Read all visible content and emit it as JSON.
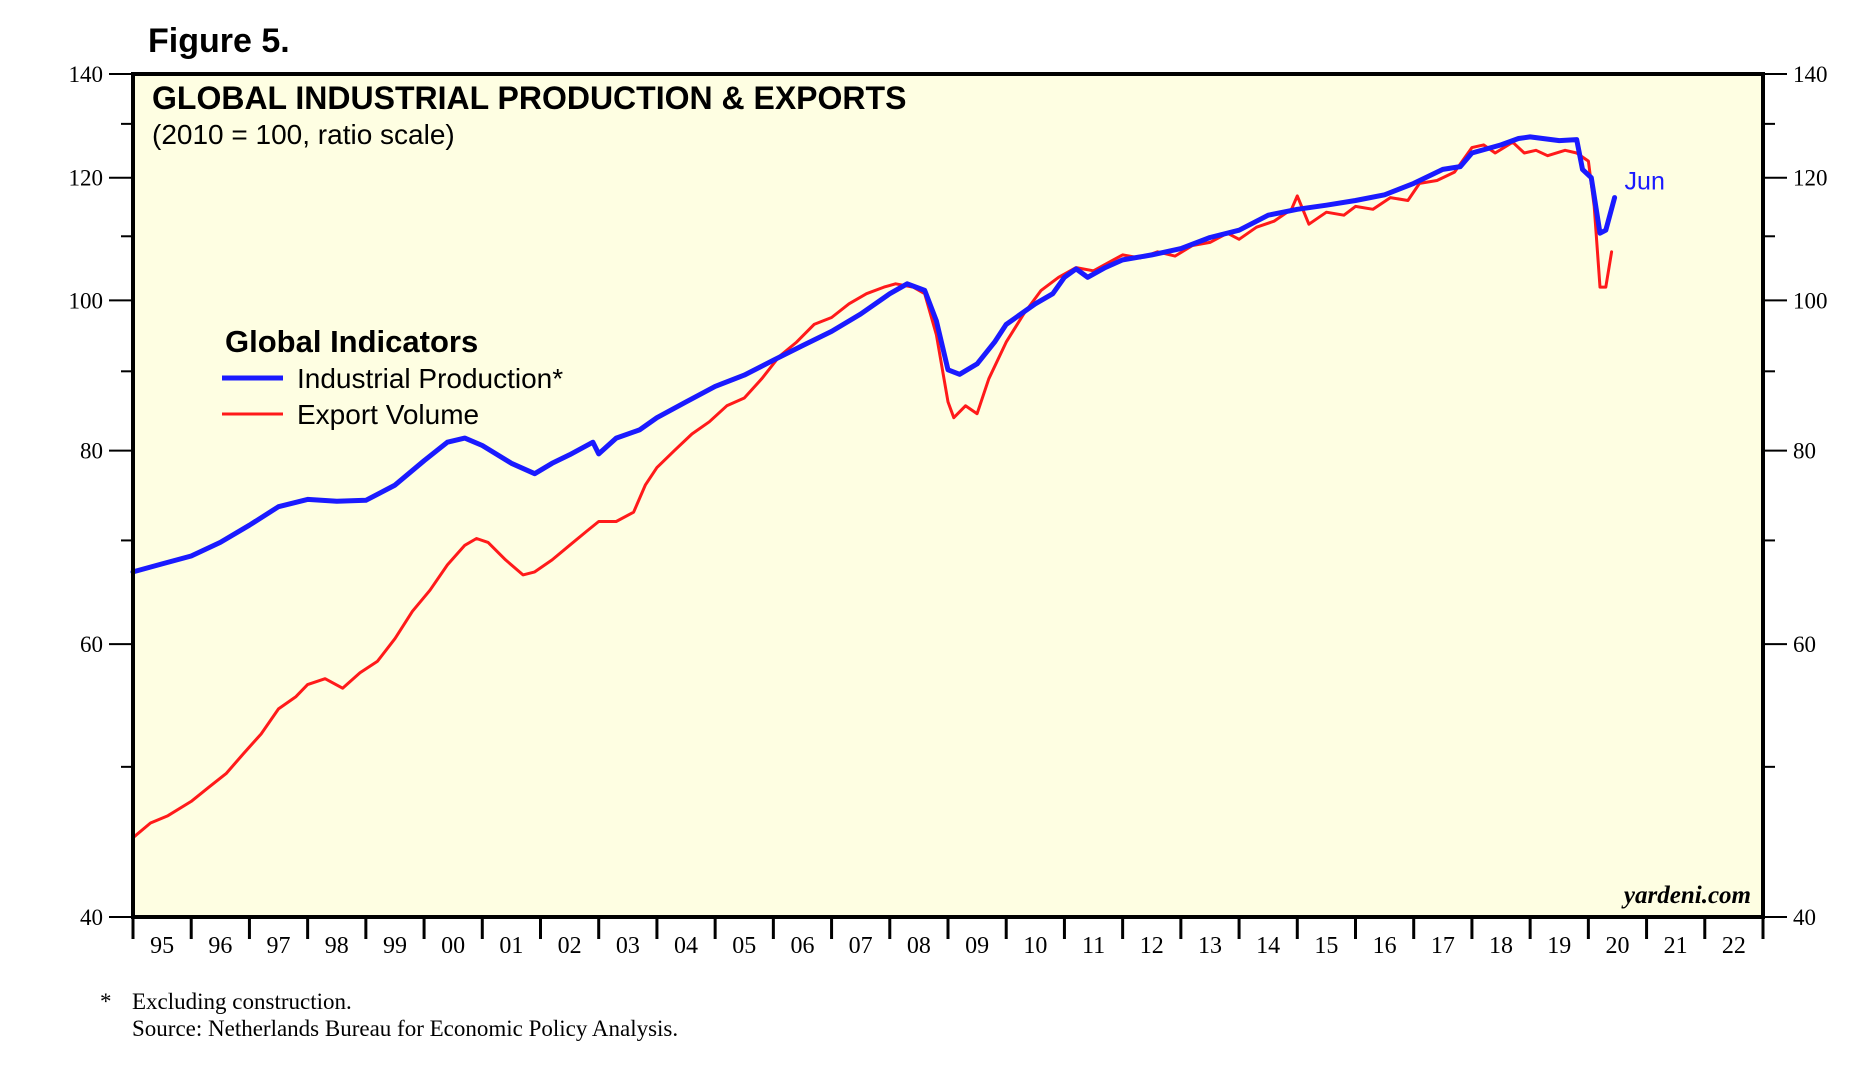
{
  "figure_label": "Figure 5.",
  "footnotes": {
    "marker": "*",
    "note": "Excluding construction.",
    "source": "Source: Netherlands Bureau for Economic Policy Analysis."
  },
  "brand": "yardeni.com",
  "colors": {
    "plot_background": "#fefee2",
    "industrial_production": "#1a1aff",
    "export_volume": "#ff1a1a",
    "axis": "#000000"
  },
  "chart_data": {
    "type": "line",
    "title": "GLOBAL INDUSTRIAL PRODUCTION & EXPORTS",
    "subtitle": "(2010 = 100, ratio scale)",
    "xlabel": "",
    "ylabel": "",
    "y_scale": "log",
    "ylim": [
      40,
      140
    ],
    "xlim": [
      1995,
      2023
    ],
    "y_ticks_labeled": [
      "40",
      "60",
      "80",
      "100",
      "120",
      "140"
    ],
    "y_tick_values": [
      40,
      60,
      80,
      100,
      120,
      140
    ],
    "y_minor_ticks": [
      50,
      70,
      90,
      110,
      130
    ],
    "x_tick_labels": [
      "95",
      "96",
      "97",
      "98",
      "99",
      "00",
      "01",
      "02",
      "03",
      "04",
      "05",
      "06",
      "07",
      "08",
      "09",
      "10",
      "11",
      "12",
      "13",
      "14",
      "15",
      "16",
      "17",
      "18",
      "19",
      "20",
      "21",
      "22"
    ],
    "legend": {
      "title": "Global Indicators",
      "position": "upper-left",
      "entries": [
        "Industrial Production*",
        "Export Volume"
      ]
    },
    "end_label": "Jun",
    "series": [
      {
        "name": "Industrial Production*",
        "color": "#1a1aff",
        "points": [
          [
            1995.0,
            66.8
          ],
          [
            1995.5,
            67.6
          ],
          [
            1996.0,
            68.4
          ],
          [
            1996.5,
            69.8
          ],
          [
            1997.0,
            71.6
          ],
          [
            1997.5,
            73.6
          ],
          [
            1998.0,
            74.4
          ],
          [
            1998.5,
            74.2
          ],
          [
            1999.0,
            74.3
          ],
          [
            1999.5,
            76.0
          ],
          [
            2000.0,
            78.8
          ],
          [
            2000.4,
            81.0
          ],
          [
            2000.7,
            81.5
          ],
          [
            2001.0,
            80.6
          ],
          [
            2001.5,
            78.5
          ],
          [
            2001.9,
            77.3
          ],
          [
            2002.2,
            78.5
          ],
          [
            2002.5,
            79.5
          ],
          [
            2002.9,
            81.0
          ],
          [
            2003.0,
            79.6
          ],
          [
            2003.3,
            81.5
          ],
          [
            2003.7,
            82.5
          ],
          [
            2004.0,
            84.0
          ],
          [
            2004.5,
            86.0
          ],
          [
            2005.0,
            88.0
          ],
          [
            2005.5,
            89.5
          ],
          [
            2006.0,
            91.5
          ],
          [
            2006.5,
            93.5
          ],
          [
            2007.0,
            95.5
          ],
          [
            2007.5,
            98.0
          ],
          [
            2008.0,
            101.0
          ],
          [
            2008.3,
            102.5
          ],
          [
            2008.6,
            101.5
          ],
          [
            2008.8,
            97.0
          ],
          [
            2009.0,
            90.2
          ],
          [
            2009.2,
            89.6
          ],
          [
            2009.5,
            91.0
          ],
          [
            2009.8,
            94.0
          ],
          [
            2010.0,
            96.5
          ],
          [
            2010.5,
            99.5
          ],
          [
            2010.8,
            101.0
          ],
          [
            2011.0,
            103.5
          ],
          [
            2011.2,
            104.8
          ],
          [
            2011.4,
            103.5
          ],
          [
            2011.7,
            105.0
          ],
          [
            2012.0,
            106.2
          ],
          [
            2012.5,
            107.0
          ],
          [
            2013.0,
            108.0
          ],
          [
            2013.5,
            109.8
          ],
          [
            2014.0,
            111.0
          ],
          [
            2014.5,
            113.5
          ],
          [
            2015.0,
            114.5
          ],
          [
            2015.5,
            115.2
          ],
          [
            2016.0,
            116.0
          ],
          [
            2016.5,
            117.0
          ],
          [
            2017.0,
            119.0
          ],
          [
            2017.5,
            121.5
          ],
          [
            2017.8,
            122.0
          ],
          [
            2018.0,
            124.5
          ],
          [
            2018.5,
            126.0
          ],
          [
            2018.8,
            127.2
          ],
          [
            2019.0,
            127.5
          ],
          [
            2019.5,
            126.8
          ],
          [
            2019.8,
            127.0
          ],
          [
            2019.9,
            121.5
          ],
          [
            2020.05,
            120.0
          ],
          [
            2020.2,
            110.5
          ],
          [
            2020.3,
            111.0
          ],
          [
            2020.45,
            116.5
          ]
        ]
      },
      {
        "name": "Export Volume",
        "color": "#ff1a1a",
        "points": [
          [
            1995.0,
            45.0
          ],
          [
            1995.3,
            46.0
          ],
          [
            1995.6,
            46.5
          ],
          [
            1996.0,
            47.5
          ],
          [
            1996.3,
            48.5
          ],
          [
            1996.6,
            49.5
          ],
          [
            1996.9,
            51.0
          ],
          [
            1997.2,
            52.5
          ],
          [
            1997.5,
            54.5
          ],
          [
            1997.8,
            55.5
          ],
          [
            1998.0,
            56.5
          ],
          [
            1998.3,
            57.0
          ],
          [
            1998.6,
            56.2
          ],
          [
            1998.9,
            57.5
          ],
          [
            1999.2,
            58.5
          ],
          [
            1999.5,
            60.5
          ],
          [
            1999.8,
            63.0
          ],
          [
            2000.1,
            65.0
          ],
          [
            2000.4,
            67.5
          ],
          [
            2000.7,
            69.5
          ],
          [
            2000.9,
            70.2
          ],
          [
            2001.1,
            69.8
          ],
          [
            2001.4,
            68.0
          ],
          [
            2001.7,
            66.5
          ],
          [
            2001.9,
            66.8
          ],
          [
            2002.2,
            68.0
          ],
          [
            2002.5,
            69.5
          ],
          [
            2002.8,
            71.0
          ],
          [
            2003.0,
            72.0
          ],
          [
            2003.3,
            72.0
          ],
          [
            2003.6,
            73.0
          ],
          [
            2003.8,
            76.0
          ],
          [
            2004.0,
            78.0
          ],
          [
            2004.3,
            80.0
          ],
          [
            2004.6,
            82.0
          ],
          [
            2004.9,
            83.5
          ],
          [
            2005.2,
            85.5
          ],
          [
            2005.5,
            86.5
          ],
          [
            2005.8,
            89.0
          ],
          [
            2006.1,
            92.0
          ],
          [
            2006.4,
            94.0
          ],
          [
            2006.7,
            96.5
          ],
          [
            2007.0,
            97.5
          ],
          [
            2007.3,
            99.5
          ],
          [
            2007.6,
            101.0
          ],
          [
            2007.9,
            102.0
          ],
          [
            2008.1,
            102.5
          ],
          [
            2008.4,
            102.0
          ],
          [
            2008.6,
            101.0
          ],
          [
            2008.8,
            95.0
          ],
          [
            2009.0,
            86.0
          ],
          [
            2009.1,
            84.0
          ],
          [
            2009.3,
            85.5
          ],
          [
            2009.5,
            84.5
          ],
          [
            2009.7,
            89.0
          ],
          [
            2010.0,
            94.0
          ],
          [
            2010.3,
            98.0
          ],
          [
            2010.6,
            101.5
          ],
          [
            2010.9,
            103.5
          ],
          [
            2011.2,
            105.0
          ],
          [
            2011.5,
            104.5
          ],
          [
            2011.8,
            106.0
          ],
          [
            2012.0,
            107.0
          ],
          [
            2012.3,
            106.5
          ],
          [
            2012.6,
            107.5
          ],
          [
            2012.9,
            106.8
          ],
          [
            2013.2,
            108.5
          ],
          [
            2013.5,
            109.0
          ],
          [
            2013.8,
            110.5
          ],
          [
            2014.0,
            109.5
          ],
          [
            2014.3,
            111.5
          ],
          [
            2014.6,
            112.5
          ],
          [
            2014.9,
            114.5
          ],
          [
            2015.0,
            116.8
          ],
          [
            2015.2,
            112.0
          ],
          [
            2015.5,
            114.0
          ],
          [
            2015.8,
            113.5
          ],
          [
            2016.0,
            115.0
          ],
          [
            2016.3,
            114.5
          ],
          [
            2016.6,
            116.5
          ],
          [
            2016.9,
            116.0
          ],
          [
            2017.1,
            119.0
          ],
          [
            2017.4,
            119.5
          ],
          [
            2017.7,
            121.0
          ],
          [
            2018.0,
            125.5
          ],
          [
            2018.2,
            126.0
          ],
          [
            2018.4,
            124.5
          ],
          [
            2018.7,
            126.5
          ],
          [
            2018.9,
            124.5
          ],
          [
            2019.1,
            125.0
          ],
          [
            2019.3,
            124.0
          ],
          [
            2019.6,
            125.0
          ],
          [
            2019.8,
            124.5
          ],
          [
            2020.0,
            123.0
          ],
          [
            2020.1,
            115.0
          ],
          [
            2020.2,
            102.0
          ],
          [
            2020.3,
            102.0
          ],
          [
            2020.4,
            107.5
          ]
        ]
      }
    ]
  }
}
